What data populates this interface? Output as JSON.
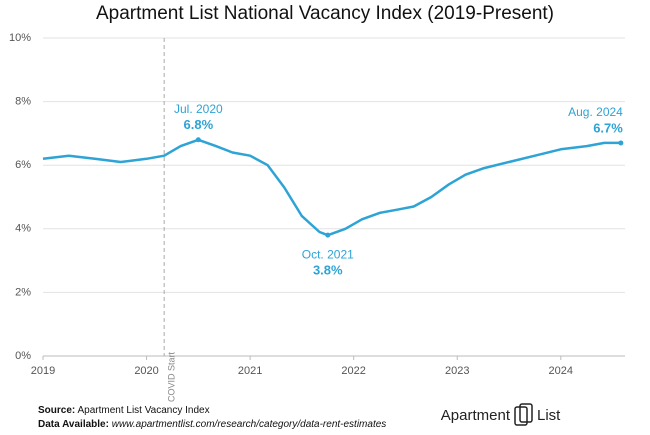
{
  "chart_data": {
    "type": "line",
    "title": "Apartment List National Vacancy Index (2019-Present)",
    "x": [
      2019.0,
      2019.25,
      2019.5,
      2019.75,
      2020.0,
      2020.17,
      2020.33,
      2020.5,
      2020.67,
      2020.83,
      2021.0,
      2021.17,
      2021.33,
      2021.5,
      2021.67,
      2021.75,
      2021.92,
      2022.08,
      2022.25,
      2022.42,
      2022.58,
      2022.75,
      2022.92,
      2023.08,
      2023.25,
      2023.5,
      2023.75,
      2024.0,
      2024.25,
      2024.42,
      2024.58
    ],
    "values": [
      6.2,
      6.3,
      6.2,
      6.1,
      6.2,
      6.3,
      6.6,
      6.8,
      6.6,
      6.4,
      6.3,
      6.0,
      5.3,
      4.4,
      3.9,
      3.8,
      4.0,
      4.3,
      4.5,
      4.6,
      4.7,
      5.0,
      5.4,
      5.7,
      5.9,
      6.1,
      6.3,
      6.5,
      6.6,
      6.7,
      6.7
    ],
    "color": "#2ea3d5",
    "xlim": [
      2019,
      2024.62
    ],
    "xticks": [
      2019,
      2020,
      2021,
      2022,
      2023,
      2024
    ],
    "ylim": [
      0,
      10
    ],
    "yticks": [
      {
        "value": 0,
        "label": "0%"
      },
      {
        "value": 2,
        "label": "2%"
      },
      {
        "value": 4,
        "label": "4%"
      },
      {
        "value": 6,
        "label": "6%"
      },
      {
        "value": 8,
        "label": "8%"
      },
      {
        "value": 10,
        "label": "10%"
      }
    ],
    "grid": true,
    "event": {
      "x": 2020.17,
      "label": "COVID Start"
    },
    "annotations": [
      {
        "text": "Jul. 2020",
        "value_label": "6.8%",
        "x": 2020.5,
        "y": 6.8,
        "position": "above"
      },
      {
        "text": "Oct. 2021",
        "value_label": "3.8%",
        "x": 2021.75,
        "y": 3.8,
        "position": "below"
      },
      {
        "text": "Aug. 2024",
        "value_label": "6.7%",
        "x": 2024.58,
        "y": 6.7,
        "position": "above-left"
      }
    ]
  },
  "footer": {
    "source_label": "Source:",
    "source": "Apartment List Vacancy Index",
    "data_label": "Data Available:",
    "url": "www.apartmentlist.com/research/category/data-rent-estimates",
    "logo_left": "Apartment",
    "logo_right": "List"
  }
}
